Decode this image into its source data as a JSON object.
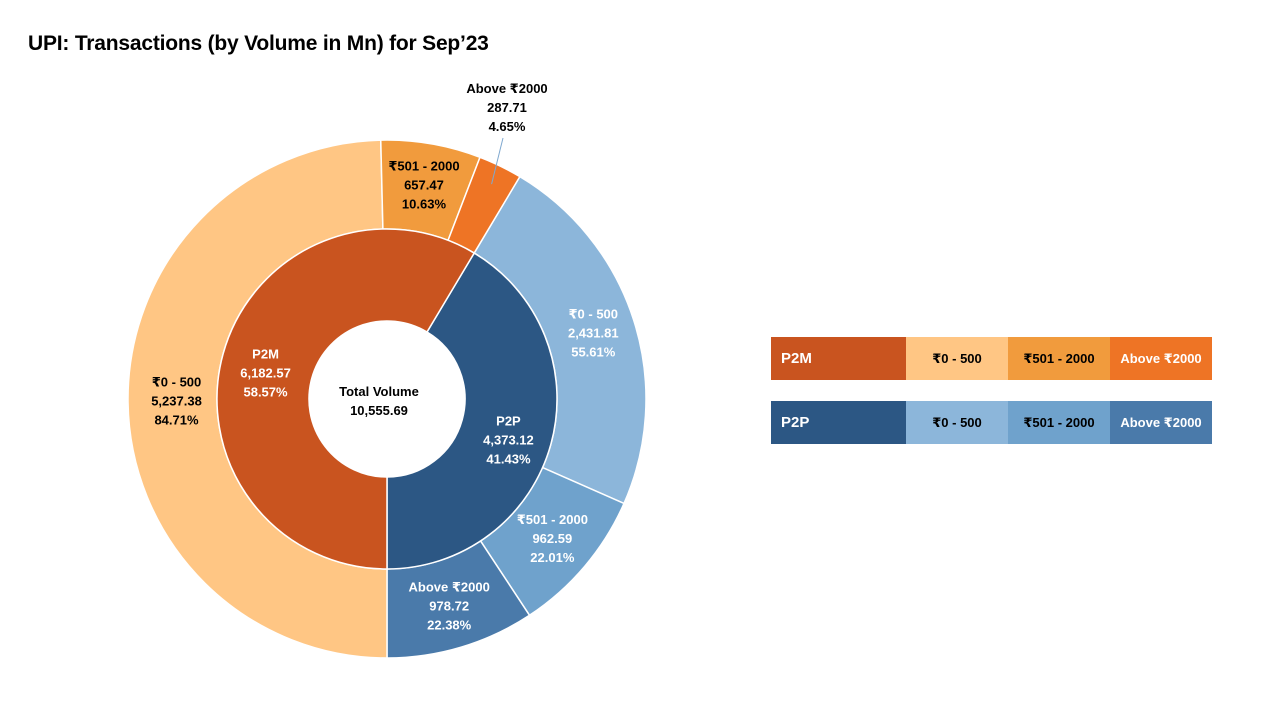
{
  "title": "UPI: Transactions (by Volume in Mn) for Sep’23",
  "center": {
    "line1": "Total Volume",
    "line2": "10,555.69"
  },
  "colors": {
    "p2m": "#C9541F",
    "p2p": "#2C5784",
    "p2m_0_500": "#FFC684",
    "p2m_501_2000": "#F19B3D",
    "p2m_above_2000": "#EE7425",
    "p2p_0_500": "#8CB6DA",
    "p2p_501_2000": "#6FA2CC",
    "p2p_above_2000": "#4A7AAA"
  },
  "chart_data": {
    "type": "pie",
    "title": "UPI: Transactions (by Volume in Mn) for Sep’23",
    "total": {
      "label": "Total Volume",
      "value": 10555.69
    },
    "inner_ring": [
      {
        "name": "P2M",
        "value": 6182.57,
        "value_label": "6,182.57",
        "percent_label": "58.57%",
        "color": "#C9541F"
      },
      {
        "name": "P2P",
        "value": 4373.12,
        "value_label": "4,373.12",
        "percent_label": "41.43%",
        "color": "#2C5784"
      }
    ],
    "outer_ring": [
      {
        "parent": "P2P",
        "name": "₹0 - 500",
        "value": 2431.81,
        "value_label": "2,431.81",
        "percent_label": "55.61%",
        "color": "#8CB6DA"
      },
      {
        "parent": "P2P",
        "name": "₹501 - 2000",
        "value": 962.59,
        "value_label": "962.59",
        "percent_label": "22.01%",
        "color": "#6FA2CC"
      },
      {
        "parent": "P2P",
        "name": "Above ₹2000",
        "value": 978.72,
        "value_label": "978.72",
        "percent_label": "22.38%",
        "color": "#4A7AAA"
      },
      {
        "parent": "P2M",
        "name": "₹0 - 500",
        "value": 5237.38,
        "value_label": "5,237.38",
        "percent_label": "84.71%",
        "color": "#FFC684"
      },
      {
        "parent": "P2M",
        "name": "₹501 - 2000",
        "value": 657.47,
        "value_label": "657.47",
        "percent_label": "10.63%",
        "color": "#F19B3D"
      },
      {
        "parent": "P2M",
        "name": "Above ₹2000",
        "value": 287.71,
        "value_label": "287.71",
        "percent_label": "4.65%",
        "color": "#EE7425"
      }
    ]
  },
  "legend": [
    {
      "head": "P2M",
      "head_color": "#C9541F",
      "items": [
        {
          "label": "₹0 - 500",
          "color": "#FFC684"
        },
        {
          "label": "₹501 - 2000",
          "color": "#F19B3D"
        },
        {
          "label": "Above ₹2000",
          "color": "#EE7425"
        }
      ]
    },
    {
      "head": "P2P",
      "head_color": "#2C5784",
      "items": [
        {
          "label": "₹0 - 500",
          "color": "#8CB6DA"
        },
        {
          "label": "₹501 - 2000",
          "color": "#6FA2CC"
        },
        {
          "label": "Above ₹2000",
          "color": "#4A7AAA"
        }
      ]
    }
  ]
}
